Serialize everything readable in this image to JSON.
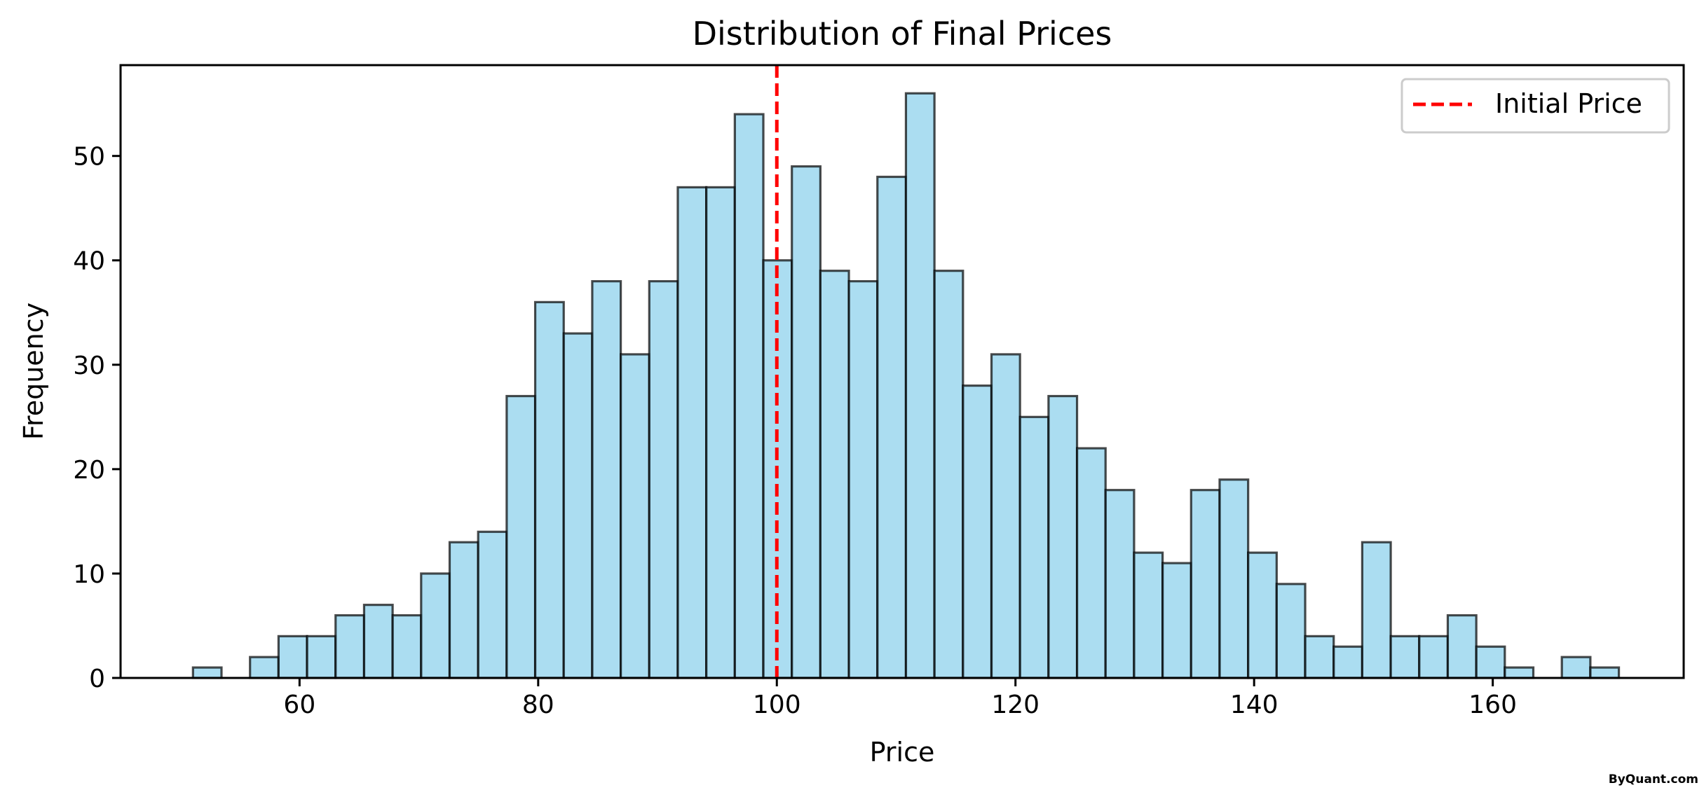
{
  "chart_data": {
    "type": "bar",
    "title": "Distribution of Final Prices",
    "xlabel": "Price",
    "ylabel": "Frequency",
    "xlim": [
      45.0,
      176.0
    ],
    "ylim": [
      0,
      58.7
    ],
    "x_ticks": [
      60,
      80,
      100,
      120,
      140,
      160
    ],
    "y_ticks": [
      0,
      10,
      20,
      30,
      40,
      50
    ],
    "bin_start": 51.07,
    "bin_width": 2.39,
    "frequencies": [
      1,
      0,
      2,
      4,
      4,
      6,
      7,
      6,
      10,
      13,
      14,
      27,
      36,
      33,
      38,
      31,
      38,
      47,
      47,
      54,
      40,
      49,
      39,
      38,
      48,
      56,
      39,
      28,
      31,
      25,
      27,
      22,
      18,
      12,
      11,
      18,
      19,
      12,
      9,
      4,
      3,
      13,
      4,
      4,
      6,
      3,
      1,
      0,
      2,
      1
    ],
    "bar_color": "#87CEEB",
    "bar_edge_color": "#000000",
    "vline": {
      "x": 100,
      "label": "Initial Price",
      "color": "#ff0000",
      "style": "dashed"
    },
    "legend": {
      "position": "top-right",
      "entries": [
        "Initial Price"
      ]
    },
    "grid": false
  },
  "watermark": "ByQuant.com"
}
